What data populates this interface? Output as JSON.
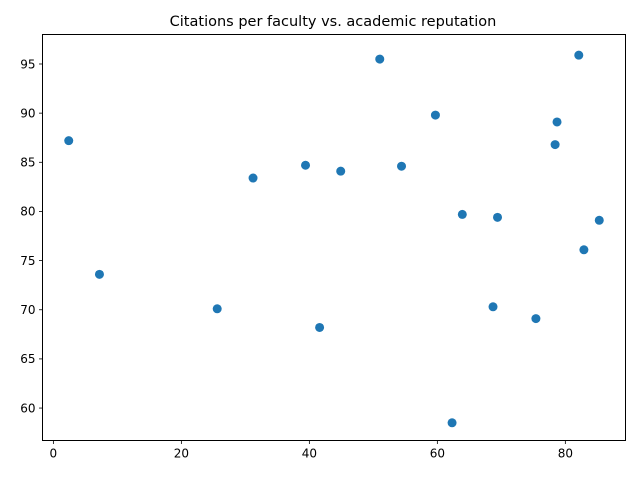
{
  "chart_data": {
    "type": "scatter",
    "title": "Citations per faculty vs. academic reputation",
    "xlabel": "",
    "ylabel": "",
    "xlim": [
      -1.7,
      89.4
    ],
    "ylim": [
      56.7,
      98.0
    ],
    "x_ticks": [
      0,
      20,
      40,
      60,
      80
    ],
    "y_ticks": [
      60,
      65,
      70,
      75,
      80,
      85,
      90,
      95
    ],
    "grid": false,
    "marker_color": "#1f77b4",
    "points": [
      {
        "x": 2.4,
        "y": 87.2
      },
      {
        "x": 7.2,
        "y": 73.6
      },
      {
        "x": 25.6,
        "y": 70.1
      },
      {
        "x": 31.2,
        "y": 83.4
      },
      {
        "x": 39.4,
        "y": 84.7
      },
      {
        "x": 41.6,
        "y": 68.2
      },
      {
        "x": 44.9,
        "y": 84.1
      },
      {
        "x": 51.0,
        "y": 95.5
      },
      {
        "x": 54.4,
        "y": 84.6
      },
      {
        "x": 59.7,
        "y": 89.8
      },
      {
        "x": 62.3,
        "y": 58.5
      },
      {
        "x": 63.9,
        "y": 79.7
      },
      {
        "x": 68.7,
        "y": 70.3
      },
      {
        "x": 69.4,
        "y": 79.4
      },
      {
        "x": 75.4,
        "y": 69.1
      },
      {
        "x": 78.4,
        "y": 86.8
      },
      {
        "x": 78.7,
        "y": 89.1
      },
      {
        "x": 82.1,
        "y": 95.9
      },
      {
        "x": 82.9,
        "y": 76.1
      },
      {
        "x": 85.3,
        "y": 79.1
      }
    ]
  }
}
